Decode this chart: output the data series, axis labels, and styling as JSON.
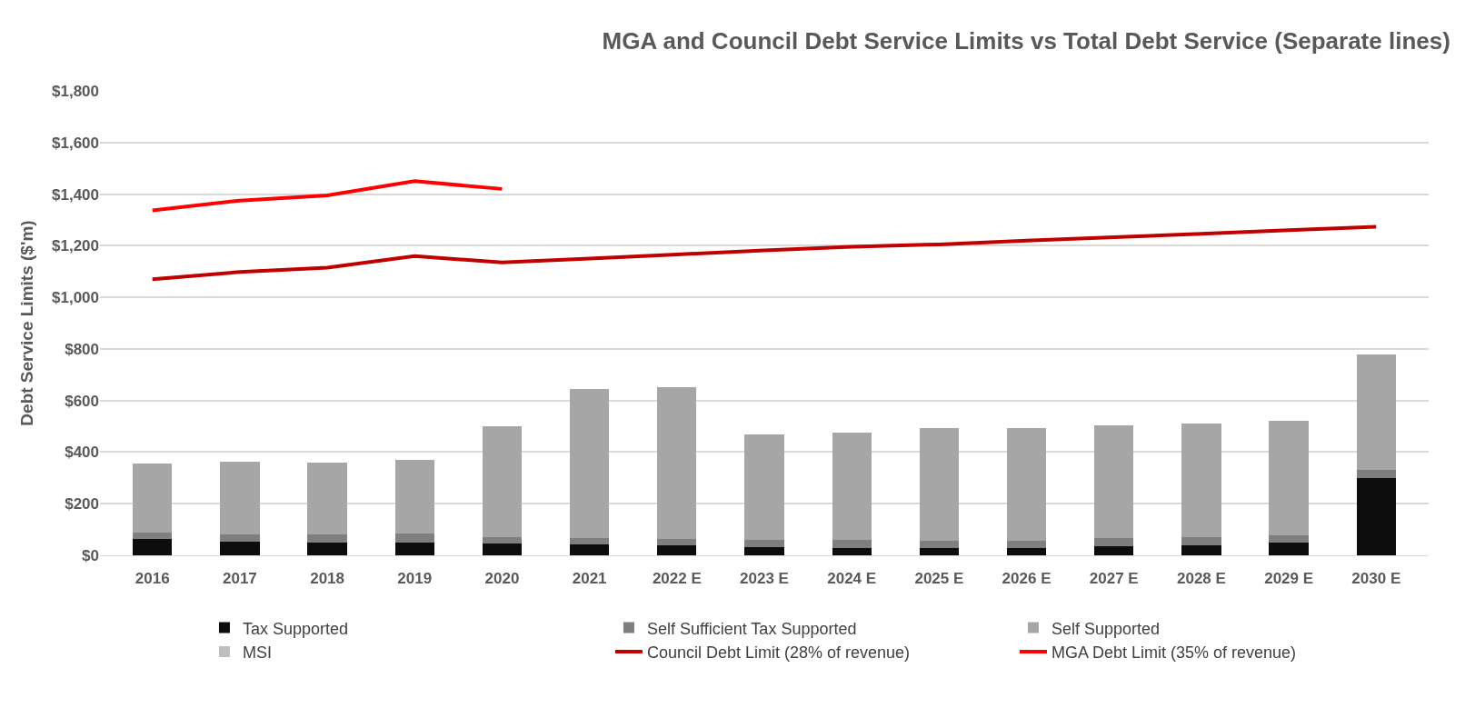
{
  "chart_data": {
    "type": "bar",
    "stacked": true,
    "title": "MGA and Council Debt Service Limits vs Total Debt Service (Separate lines)",
    "ylabel": "Debt Service Limits ($'m)",
    "categories": [
      "2016",
      "2017",
      "2018",
      "2019",
      "2020",
      "2021",
      "2022 E",
      "2023 E",
      "2024 E",
      "2025 E",
      "2026 E",
      "2027 E",
      "2028 E",
      "2029 E",
      "2030 E"
    ],
    "ylim": [
      0,
      1800
    ],
    "yticks": [
      {
        "value": 0,
        "label": "$0"
      },
      {
        "value": 200,
        "label": "$200"
      },
      {
        "value": 400,
        "label": "$400"
      },
      {
        "value": 600,
        "label": "$600"
      },
      {
        "value": 800,
        "label": "$800"
      },
      {
        "value": 1000,
        "label": "$1,000"
      },
      {
        "value": 1200,
        "label": "$1,200"
      },
      {
        "value": 1400,
        "label": "$1,400"
      },
      {
        "value": 1600,
        "label": "$1,600"
      },
      {
        "value": 1800,
        "label": "$1,800"
      }
    ],
    "grid": "y",
    "legend": "bottom",
    "series": [
      {
        "name": "Tax Supported",
        "color": "#0d0d0d",
        "values": [
          62,
          54,
          50,
          50,
          47,
          44,
          38,
          33,
          29,
          29,
          29,
          36,
          40,
          50,
          300
        ]
      },
      {
        "name": "Self Sufficient Tax Supported",
        "color": "#7f7f7f",
        "values": [
          27,
          27,
          31,
          34,
          24,
          24,
          27,
          27,
          31,
          28,
          28,
          30,
          29,
          28,
          30
        ]
      },
      {
        "name": "Self Supported",
        "color": "#a6a6a6",
        "values": [
          266,
          281,
          277,
          286,
          429,
          575,
          585,
          410,
          415,
          435,
          436,
          437,
          441,
          442,
          447
        ]
      },
      {
        "name": "MSI",
        "color": "#bfbfbf",
        "values": [
          0,
          0,
          0,
          0,
          0,
          0,
          0,
          0,
          0,
          0,
          0,
          0,
          0,
          0,
          0
        ]
      },
      {
        "name": "Council Debt Limit (28% of revenue)",
        "type": "line",
        "color": "#c00000",
        "values": [
          1070,
          1098,
          1115,
          1160,
          1135,
          1150,
          1166,
          1182,
          1196,
          1205,
          1220,
          1233,
          1246,
          1260,
          1273
        ]
      },
      {
        "name": "MGA Debt Limit (35% of revenue)",
        "type": "line",
        "color": "#ff0000",
        "values": [
          1337,
          1375,
          1395,
          1450,
          1420,
          null,
          null,
          null,
          null,
          null,
          null,
          null,
          null,
          null,
          null
        ]
      }
    ]
  }
}
